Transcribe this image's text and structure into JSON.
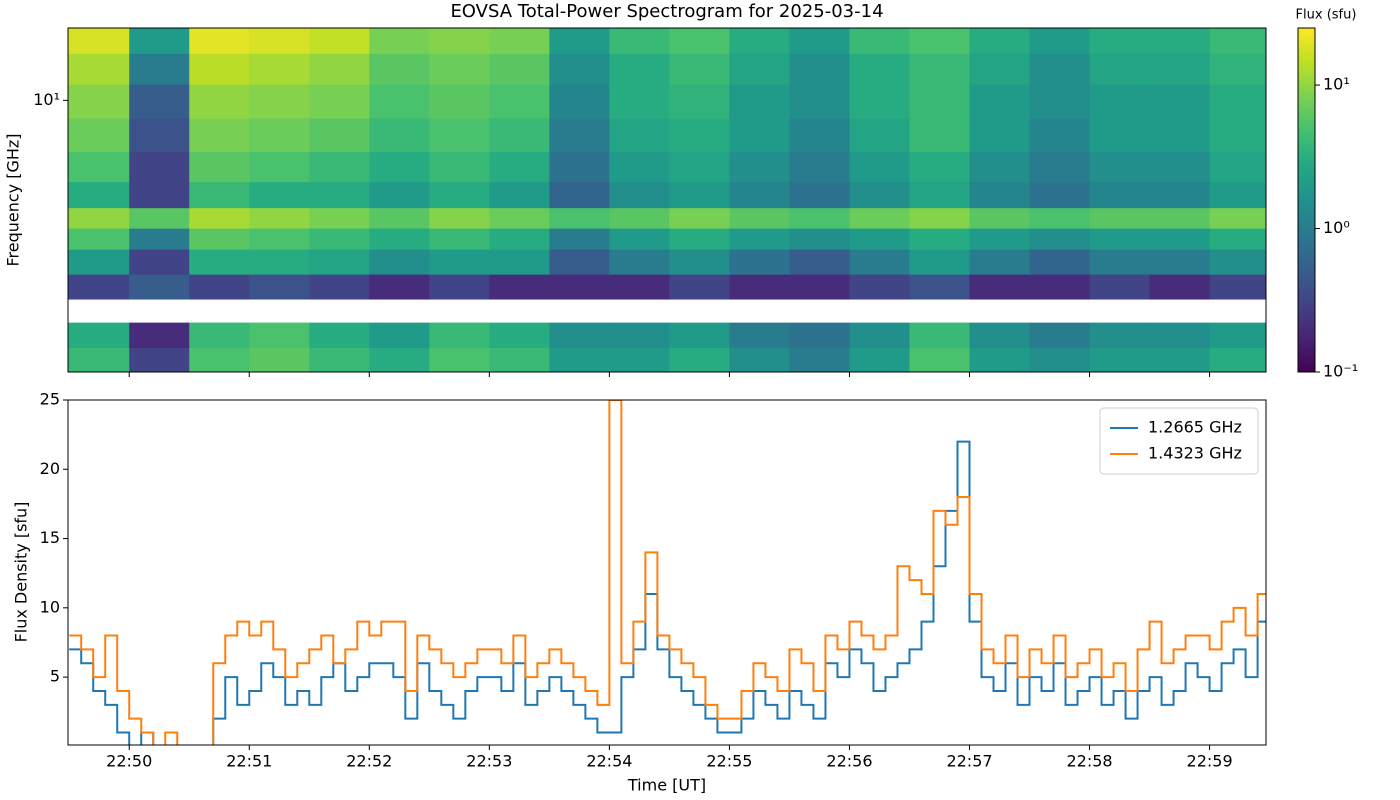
{
  "chart_data": [
    {
      "type": "heatmap",
      "title": "EOVSA Total-Power Spectrogram for 2025-03-14",
      "y_label": "Frequency [GHz]",
      "colorbar_label": "Flux (sfu)",
      "colormap": "viridis",
      "xlim": [
        49.49,
        59.47
      ],
      "xticks": [
        50,
        51,
        52,
        53,
        54,
        55,
        56,
        57,
        58,
        59
      ],
      "ylim": [
        1.1,
        18
      ],
      "yscale": "log",
      "yticks": [
        {
          "value": 10,
          "label": "10¹"
        }
      ],
      "clim": [
        0.1,
        25
      ],
      "cscale": "log",
      "cticks": [
        {
          "value": 0.1,
          "label": "10⁻¹"
        },
        {
          "value": 1,
          "label": "10⁰"
        },
        {
          "value": 10,
          "label": "10¹"
        }
      ],
      "x": [
        49.75,
        50.25,
        50.75,
        51.25,
        51.75,
        52.25,
        52.75,
        53.25,
        53.75,
        54.25,
        54.75,
        55.25,
        55.75,
        56.25,
        56.75,
        57.25,
        57.75,
        58.25,
        58.75,
        59.25
      ],
      "y": [
        1.2,
        1.5,
        1.8,
        2.2,
        2.7,
        3.3,
        3.8,
        4.6,
        5.8,
        7.5,
        10,
        13,
        16.5
      ],
      "z": [
        [
          4,
          0.3,
          5,
          6,
          4,
          3,
          5,
          4,
          2,
          2,
          3,
          1.5,
          1,
          2,
          5,
          2,
          1.5,
          2,
          2,
          3
        ],
        [
          3,
          0.2,
          4,
          5,
          3,
          2,
          4,
          3,
          1.5,
          1.5,
          2,
          1,
          0.8,
          1.5,
          4,
          1.5,
          1,
          1.5,
          1.5,
          2
        ],
        [
          null,
          null,
          null,
          null,
          null,
          null,
          null,
          null,
          null,
          null,
          null,
          null,
          null,
          null,
          null,
          null,
          null,
          null,
          null,
          null
        ],
        [
          0.3,
          0.5,
          0.3,
          0.4,
          0.3,
          0.2,
          0.3,
          0.2,
          0.2,
          0.2,
          0.3,
          0.2,
          0.2,
          0.3,
          0.4,
          0.2,
          0.2,
          0.3,
          0.2,
          0.3
        ],
        [
          2,
          0.3,
          3,
          3,
          2.5,
          1.5,
          2,
          2,
          0.5,
          1,
          1.5,
          0.8,
          0.5,
          1,
          2,
          1,
          0.6,
          1,
          1,
          1.5
        ],
        [
          5,
          1,
          6,
          5,
          4,
          3,
          4,
          3,
          1,
          2,
          3,
          2,
          1.5,
          2,
          3,
          2,
          1.5,
          2,
          2,
          3
        ],
        [
          10,
          6,
          12,
          10,
          8,
          6,
          9,
          7,
          5,
          6,
          8,
          6,
          5,
          7,
          9,
          6,
          5,
          6,
          6,
          8
        ],
        [
          3,
          0.3,
          4,
          3,
          3,
          2,
          3,
          2,
          0.6,
          1.5,
          2,
          1.2,
          0.8,
          1.5,
          2.5,
          1.2,
          0.8,
          1.2,
          1.2,
          2
        ],
        [
          5,
          0.3,
          6,
          5,
          4,
          3,
          4,
          3,
          0.8,
          2,
          2.5,
          1.5,
          1,
          2,
          3,
          1.5,
          1,
          1.5,
          1.5,
          2.5
        ],
        [
          7,
          0.4,
          8,
          7,
          6,
          4,
          5,
          4,
          1,
          2.5,
          3,
          2,
          1.2,
          2.5,
          4,
          2,
          1.2,
          2,
          2,
          3
        ],
        [
          9,
          0.5,
          10,
          9,
          8,
          5,
          6,
          5,
          1.2,
          3,
          3.5,
          2,
          1.5,
          3,
          4,
          2,
          1.5,
          2,
          2,
          3
        ],
        [
          12,
          1,
          14,
          12,
          10,
          6,
          7,
          6,
          1.5,
          3,
          4,
          2.5,
          1.5,
          3,
          4,
          2.5,
          1.5,
          2.5,
          2.5,
          3.5
        ],
        [
          18,
          2,
          20,
          18,
          15,
          8,
          9,
          8,
          2,
          4,
          5,
          3,
          2,
          4,
          5,
          3,
          2,
          3,
          3,
          4
        ]
      ]
    },
    {
      "type": "line",
      "drawstyle": "steps-post",
      "x_label": "Time [UT]",
      "y_label": "Flux Density [sfu]",
      "legend": "upper right",
      "xlim": [
        49.49,
        59.47
      ],
      "xticks": [
        {
          "value": 50,
          "label": "22:50"
        },
        {
          "value": 51,
          "label": "22:51"
        },
        {
          "value": 52,
          "label": "22:52"
        },
        {
          "value": 53,
          "label": "22:53"
        },
        {
          "value": 54,
          "label": "22:54"
        },
        {
          "value": 55,
          "label": "22:55"
        },
        {
          "value": 56,
          "label": "22:56"
        },
        {
          "value": 57,
          "label": "22:57"
        },
        {
          "value": 58,
          "label": "22:58"
        },
        {
          "value": 59,
          "label": "22:59"
        }
      ],
      "ylim": [
        0.1,
        25
      ],
      "yticks": [
        5,
        10,
        15,
        20,
        25
      ],
      "x": [
        49.5,
        49.6,
        49.7,
        49.8,
        49.9,
        50,
        50.1,
        50.2,
        50.3,
        50.4,
        50.5,
        50.6,
        50.7,
        50.8,
        50.9,
        51,
        51.1,
        51.2,
        51.3,
        51.4,
        51.5,
        51.6,
        51.7,
        51.8,
        51.9,
        52,
        52.1,
        52.2,
        52.3,
        52.4,
        52.5,
        52.6,
        52.7,
        52.8,
        52.9,
        53,
        53.1,
        53.2,
        53.3,
        53.4,
        53.5,
        53.6,
        53.7,
        53.8,
        53.9,
        54,
        54.1,
        54.2,
        54.3,
        54.4,
        54.5,
        54.6,
        54.7,
        54.8,
        54.9,
        55,
        55.1,
        55.2,
        55.3,
        55.4,
        55.5,
        55.6,
        55.7,
        55.8,
        55.9,
        56,
        56.1,
        56.2,
        56.3,
        56.4,
        56.5,
        56.6,
        56.7,
        56.8,
        56.9,
        57,
        57.1,
        57.2,
        57.3,
        57.4,
        57.5,
        57.6,
        57.7,
        57.8,
        57.9,
        58,
        58.1,
        58.2,
        58.3,
        58.4,
        58.5,
        58.6,
        58.7,
        58.8,
        58.9,
        59,
        59.1,
        59.2,
        59.3,
        59.4
      ],
      "series": [
        {
          "name": "1.2665 GHz",
          "color": "#1f77b4",
          "values": [
            7,
            6,
            4,
            3,
            1,
            0,
            1,
            0,
            0,
            0,
            0,
            0,
            2,
            5,
            3,
            4,
            6,
            5,
            3,
            4,
            3,
            5,
            6,
            4,
            5,
            6,
            6,
            5,
            2,
            6,
            4,
            3,
            2,
            4,
            5,
            5,
            4,
            6,
            3,
            4,
            5,
            4,
            3,
            2,
            1,
            1,
            5,
            7,
            11,
            7,
            5,
            4,
            3,
            2,
            1,
            1,
            2,
            4,
            3,
            2,
            4,
            3,
            2,
            6,
            5,
            7,
            6,
            4,
            5,
            6,
            7,
            9,
            13,
            17,
            22,
            9,
            5,
            4,
            6,
            3,
            5,
            4,
            6,
            3,
            4,
            5,
            3,
            4,
            2,
            4,
            5,
            3,
            4,
            6,
            5,
            4,
            6,
            7,
            5,
            9
          ]
        },
        {
          "name": "1.4323 GHz",
          "color": "#ff7f0e",
          "values": [
            8,
            7,
            5,
            8,
            4,
            2,
            1,
            0,
            1,
            0,
            0,
            0,
            6,
            8,
            9,
            8,
            9,
            7,
            5,
            6,
            7,
            8,
            6,
            7,
            9,
            8,
            9,
            9,
            4,
            8,
            7,
            6,
            5,
            6,
            7,
            7,
            6,
            8,
            5,
            6,
            7,
            6,
            5,
            4,
            3,
            25,
            6,
            9,
            14,
            8,
            7,
            6,
            5,
            3,
            2,
            2,
            4,
            6,
            5,
            4,
            7,
            6,
            4,
            8,
            7,
            9,
            8,
            7,
            8,
            13,
            12,
            11,
            17,
            16,
            18,
            11,
            7,
            6,
            8,
            5,
            7,
            6,
            8,
            5,
            6,
            7,
            5,
            6,
            4,
            7,
            9,
            6,
            7,
            8,
            8,
            7,
            9,
            10,
            8,
            11
          ]
        }
      ]
    }
  ]
}
